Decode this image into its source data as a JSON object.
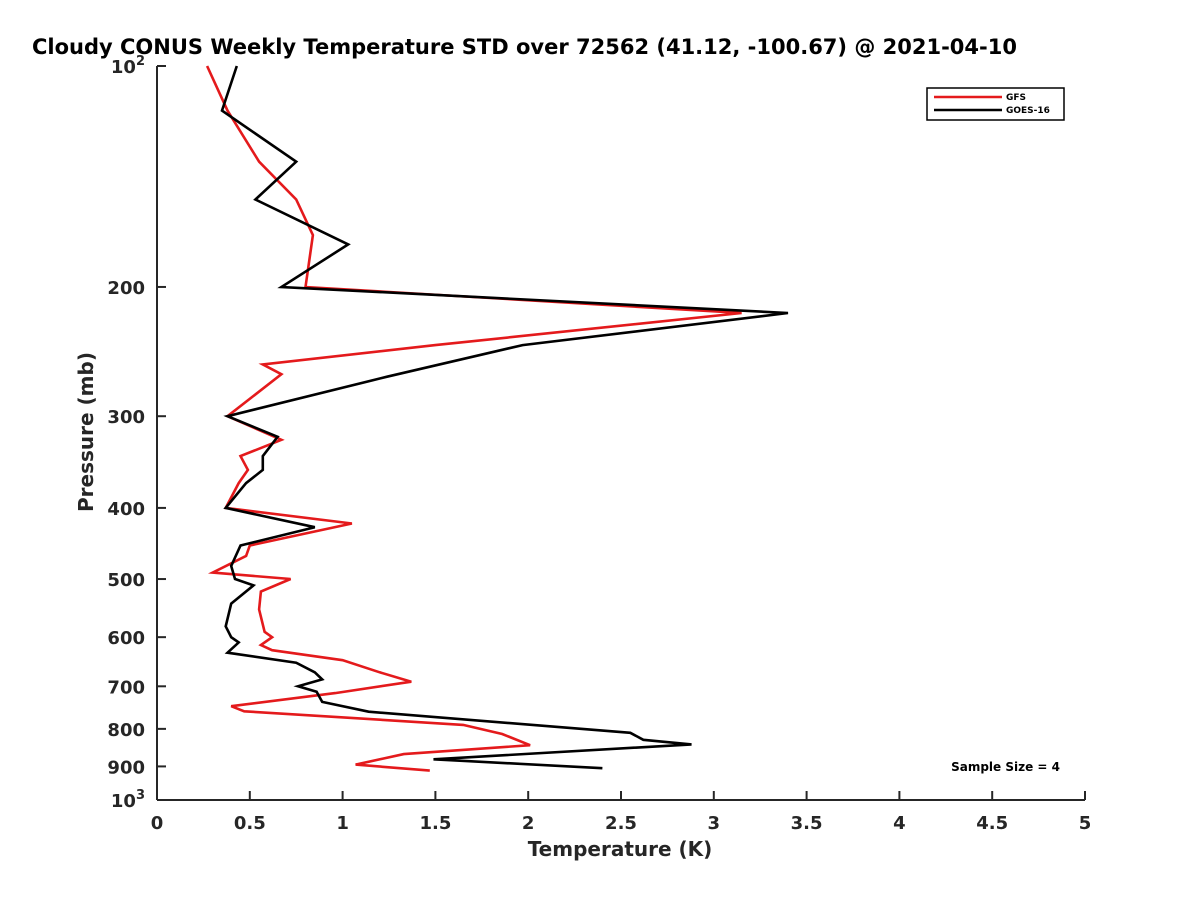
{
  "chart_data": {
    "type": "line",
    "title": "Cloudy CONUS Weekly Temperature STD over 72562 (41.12, -100.67) @ 2021-04-10",
    "xlabel": "Temperature (K)",
    "ylabel": "Pressure (mb)",
    "xlim": [
      0,
      5
    ],
    "ylim": [
      100,
      1000
    ],
    "y_scale": "log",
    "y_reversed": true,
    "x_ticks": [
      "0",
      "0.5",
      "1",
      "1.5",
      "2",
      "2.5",
      "3",
      "3.5",
      "4",
      "4.5",
      "5"
    ],
    "y_ticks": [
      {
        "value": 100,
        "base": "10",
        "exp": "2"
      },
      {
        "value": 200,
        "label": "200"
      },
      {
        "value": 300,
        "label": "300"
      },
      {
        "value": 400,
        "label": "400"
      },
      {
        "value": 500,
        "label": "500"
      },
      {
        "value": 600,
        "label": "600"
      },
      {
        "value": 700,
        "label": "700"
      },
      {
        "value": 800,
        "label": "800"
      },
      {
        "value": 900,
        "label": "900"
      },
      {
        "value": 1000,
        "base": "10",
        "exp": "3"
      }
    ],
    "grid": false,
    "legend_position": "top-right",
    "annotation": "Sample Size = 4",
    "series": [
      {
        "name": "GFS",
        "color": "#e41a1c",
        "points": [
          [
            0.27,
            100
          ],
          [
            0.38,
            115
          ],
          [
            0.55,
            135
          ],
          [
            0.75,
            152
          ],
          [
            0.84,
            170
          ],
          [
            0.8,
            200
          ],
          [
            3.15,
            217
          ],
          [
            1.5,
            240
          ],
          [
            0.57,
            255
          ],
          [
            0.67,
            263
          ],
          [
            0.38,
            300
          ],
          [
            0.67,
            323
          ],
          [
            0.45,
            340
          ],
          [
            0.49,
            355
          ],
          [
            0.44,
            370
          ],
          [
            0.37,
            400
          ],
          [
            1.05,
            420
          ],
          [
            0.5,
            450
          ],
          [
            0.48,
            465
          ],
          [
            0.3,
            490
          ],
          [
            0.72,
            500
          ],
          [
            0.56,
            520
          ],
          [
            0.55,
            550
          ],
          [
            0.58,
            590
          ],
          [
            0.62,
            600
          ],
          [
            0.56,
            615
          ],
          [
            0.62,
            625
          ],
          [
            1.0,
            645
          ],
          [
            1.2,
            670
          ],
          [
            1.37,
            690
          ],
          [
            0.96,
            715
          ],
          [
            0.4,
            745
          ],
          [
            0.47,
            757
          ],
          [
            1.65,
            790
          ],
          [
            1.86,
            813
          ],
          [
            2.01,
            842
          ],
          [
            1.33,
            866
          ],
          [
            1.07,
            895
          ],
          [
            1.47,
            912
          ]
        ]
      },
      {
        "name": "GOES-16",
        "color": "#000000",
        "points": [
          [
            0.43,
            100
          ],
          [
            0.35,
            115
          ],
          [
            0.75,
            135
          ],
          [
            0.53,
            152
          ],
          [
            1.03,
            175
          ],
          [
            0.67,
            200
          ],
          [
            3.4,
            217
          ],
          [
            1.97,
            240
          ],
          [
            1.24,
            265
          ],
          [
            0.38,
            300
          ],
          [
            0.65,
            320
          ],
          [
            0.57,
            340
          ],
          [
            0.57,
            355
          ],
          [
            0.48,
            370
          ],
          [
            0.37,
            400
          ],
          [
            0.85,
            425
          ],
          [
            0.45,
            450
          ],
          [
            0.4,
            480
          ],
          [
            0.42,
            500
          ],
          [
            0.52,
            510
          ],
          [
            0.4,
            540
          ],
          [
            0.37,
            580
          ],
          [
            0.4,
            600
          ],
          [
            0.44,
            610
          ],
          [
            0.38,
            630
          ],
          [
            0.75,
            650
          ],
          [
            0.85,
            670
          ],
          [
            0.89,
            685
          ],
          [
            0.76,
            700
          ],
          [
            0.86,
            712
          ],
          [
            0.89,
            735
          ],
          [
            1.14,
            758
          ],
          [
            2.55,
            810
          ],
          [
            2.62,
            828
          ],
          [
            2.88,
            840
          ],
          [
            1.49,
            880
          ],
          [
            2.4,
            905
          ]
        ]
      }
    ]
  }
}
